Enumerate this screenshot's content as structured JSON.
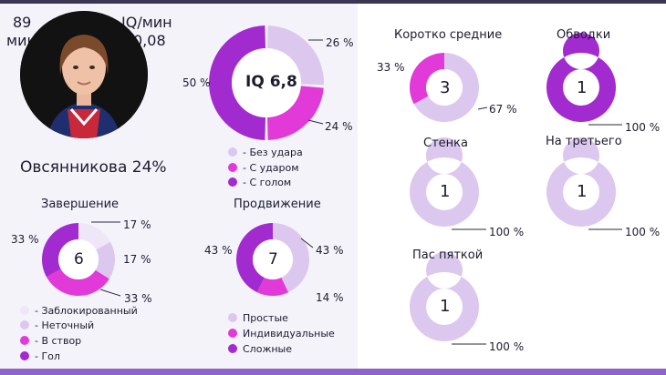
{
  "player": {
    "minutes_value": "89",
    "minutes_unit": "мин",
    "iq_label": "IQ/мин",
    "iq_value": "0,08",
    "name_line": "Овсянникова  24%"
  },
  "colors": {
    "light": "#dcc8ee",
    "very_light": "#efe6f7",
    "magenta": "#e23ad8",
    "purple": "#a22bd0",
    "ring_light": "#e0d0f0",
    "dot_light": "#ede4f6"
  },
  "iq_donut": {
    "center": "IQ 6,8",
    "slices": [
      {
        "name": "Без удара",
        "value": 26,
        "label": "26 %",
        "color": "#dcc8ee"
      },
      {
        "name": "С ударом",
        "value": 24,
        "label": "24 %",
        "color": "#e23ad8"
      },
      {
        "name": "С голом",
        "value": 50,
        "label": "50 %",
        "color": "#a22bd0"
      }
    ],
    "legend": [
      "- Без удара",
      "- С ударом",
      "- С голом"
    ]
  },
  "finish": {
    "title": "Завершение",
    "center": "6",
    "slices": [
      {
        "name": "Заблокированный",
        "value": 17,
        "label": "17 %",
        "color": "#efe6f7"
      },
      {
        "name": "Неточный",
        "value": 17,
        "label": "17 %",
        "color": "#dcc8ee"
      },
      {
        "name": "В створ",
        "value": 33,
        "label": "33 %",
        "color": "#e23ad8"
      },
      {
        "name": "Гол",
        "value": 33,
        "label": "33 %",
        "color": "#a22bd0"
      }
    ],
    "legend": [
      "- Заблокированный",
      "- Неточный",
      "- В створ",
      "- Гол"
    ]
  },
  "progress": {
    "title": "Продвижение",
    "center": "7",
    "slices": [
      {
        "name": "Простые",
        "value": 43,
        "label": "43 %",
        "color": "#dcc8ee"
      },
      {
        "name": "Индивидуальные",
        "value": 14,
        "label": "14 %",
        "color": "#e23ad8"
      },
      {
        "name": "Сложные",
        "value": 43,
        "label": "43 %",
        "color": "#a22bd0"
      }
    ],
    "legend": [
      "Простые",
      "Индивидуальные",
      "Сложные"
    ]
  },
  "passes": [
    {
      "title": "Коротко средние",
      "center": "3",
      "slices": [
        {
          "value": 67,
          "label": "67 %",
          "color": "#dcc8ee"
        },
        {
          "value": 33,
          "label": "33 %",
          "color": "#e23ad8"
        }
      ]
    },
    {
      "title": "Обводки",
      "center": "1",
      "slices": [
        {
          "value": 100,
          "label": "100 %",
          "color": "#a22bd0"
        }
      ]
    },
    {
      "title": "Стенка",
      "center": "1",
      "slices": [
        {
          "value": 100,
          "label": "100 %",
          "color": "#dcc8ee"
        }
      ]
    },
    {
      "title": "На третьего",
      "center": "1",
      "slices": [
        {
          "value": 100,
          "label": "100 %",
          "color": "#dcc8ee"
        }
      ]
    },
    {
      "title": "Пас пяткой",
      "center": "1",
      "slices": [
        {
          "value": 100,
          "label": "100 %",
          "color": "#dcc8ee"
        }
      ]
    }
  ]
}
